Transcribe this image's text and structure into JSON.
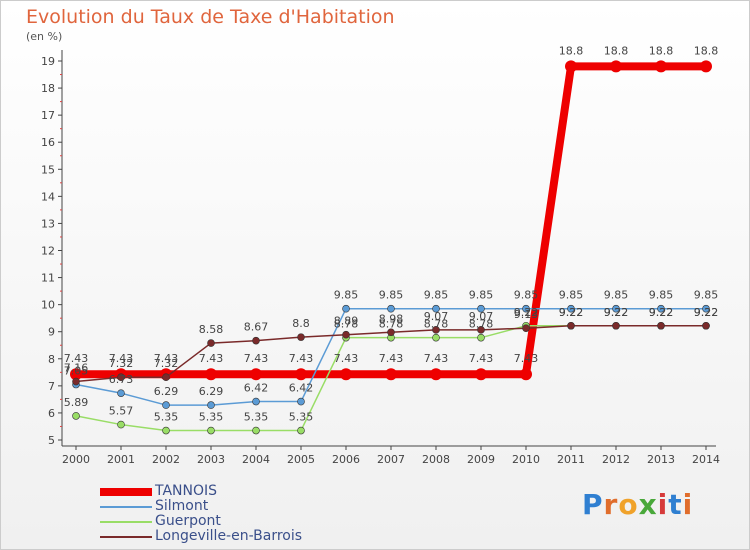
{
  "title": "Evolution du Taux de Taxe d'Habitation",
  "subtitle": "(en %)",
  "logo": {
    "letters": [
      "P",
      "r",
      "o",
      "x",
      "i",
      "t",
      "i"
    ],
    "colors": [
      "#2f7fd1",
      "#e06d2c",
      "#f0a22a",
      "#49a83a",
      "#d63a3a",
      "#2f7fd1",
      "#e06d2c"
    ]
  },
  "chart_data": {
    "type": "line",
    "x": [
      "2000",
      "2001",
      "2002",
      "2003",
      "2004",
      "2005",
      "2006",
      "2007",
      "2008",
      "2009",
      "2010",
      "2011",
      "2012",
      "2013",
      "2014"
    ],
    "ylim": [
      5,
      19
    ],
    "yticks": [
      "5",
      "6",
      "7",
      "8",
      "9",
      "10",
      "11",
      "12",
      "13",
      "14",
      "15",
      "16",
      "17",
      "18",
      "19"
    ],
    "grid": false,
    "legend_position": "bottom-left",
    "series": [
      {
        "name": "TANNOIS",
        "color": "#ee0000",
        "width": 8,
        "values": [
          7.43,
          7.43,
          7.43,
          7.43,
          7.43,
          7.43,
          7.43,
          7.43,
          7.43,
          7.43,
          7.43,
          18.8,
          18.8,
          18.8,
          18.8
        ],
        "labels": [
          "7.43",
          "7.43",
          "7.43",
          "7.43",
          "7.43",
          "7.43",
          "7.43",
          "7.43",
          "7.43",
          "7.43",
          "7.43",
          "18.8",
          "18.8",
          "18.8",
          "18.8"
        ]
      },
      {
        "name": "Silmont",
        "color": "#5b9bd5",
        "width": 1.5,
        "values": [
          7.05,
          6.73,
          6.29,
          6.29,
          6.42,
          6.42,
          9.85,
          9.85,
          9.85,
          9.85,
          9.85,
          9.85,
          9.85,
          9.85,
          9.85
        ],
        "labels": [
          "7.05",
          "6.73",
          "6.29",
          "6.29",
          "6.42",
          "6.42",
          "9.85",
          "9.85",
          "9.85",
          "9.85",
          "9.85",
          "9.85",
          "9.85",
          "9.85",
          "9.85"
        ]
      },
      {
        "name": "Guerpont",
        "color": "#99dd66",
        "width": 1.5,
        "values": [
          5.89,
          5.57,
          5.35,
          5.35,
          5.35,
          5.35,
          8.78,
          8.78,
          8.78,
          8.78,
          9.22,
          9.22,
          9.22,
          9.22,
          9.22
        ],
        "labels": [
          "5.89",
          "5.57",
          "5.35",
          "5.35",
          "5.35",
          "5.35",
          "8.78",
          "8.78",
          "8.78",
          "8.78",
          "9.22",
          "9.22",
          "9.22",
          "9.22",
          "9.22"
        ]
      },
      {
        "name": "Longeville-en-Barrois",
        "color": "#7a2a2a",
        "width": 1.5,
        "values": [
          7.16,
          7.32,
          7.32,
          8.58,
          8.67,
          8.8,
          8.89,
          8.98,
          9.07,
          9.07,
          9.13,
          9.22,
          9.22,
          9.22,
          9.22
        ],
        "labels": [
          "7.16",
          "7.32",
          "7.32",
          "8.58",
          "8.67",
          "8.8",
          "8.89",
          "8.98",
          "9.07",
          "9.07",
          "9.13",
          "9.22",
          "9.22",
          "9.22",
          "9.22"
        ]
      }
    ]
  }
}
